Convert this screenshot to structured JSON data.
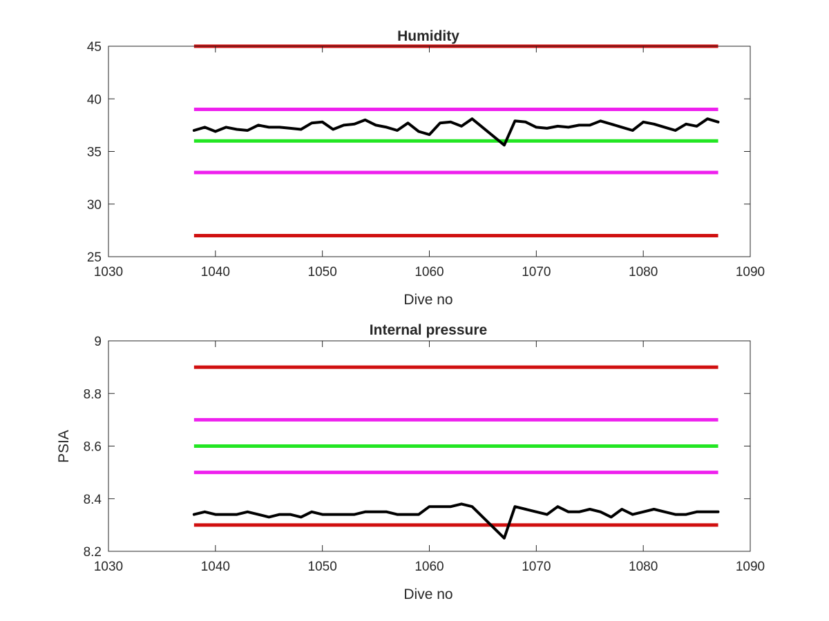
{
  "colors": {
    "data_line": "#000000",
    "red_limit": "#d01010",
    "magenta_limit": "#ee20ee",
    "green_target": "#22e622",
    "axis": "#262626",
    "background": "#ffffff"
  },
  "chart_data": [
    {
      "type": "line",
      "title": "Humidity",
      "xlabel": "Dive no",
      "ylabel": "",
      "xlim": [
        1030,
        1090
      ],
      "ylim": [
        25,
        45
      ],
      "xticks": [
        1030,
        1040,
        1050,
        1060,
        1070,
        1080,
        1090
      ],
      "yticks": [
        25,
        30,
        35,
        40,
        45
      ],
      "grid": false,
      "reference_lines": [
        {
          "color": "red",
          "y": 45,
          "x": [
            1038,
            1087
          ]
        },
        {
          "color": "magenta",
          "y": 39,
          "x": [
            1038,
            1087
          ]
        },
        {
          "color": "green",
          "y": 36,
          "x": [
            1038,
            1087
          ]
        },
        {
          "color": "magenta",
          "y": 33,
          "x": [
            1038,
            1087
          ]
        },
        {
          "color": "red",
          "y": 27,
          "x": [
            1038,
            1087
          ]
        }
      ],
      "series": [
        {
          "color": "black",
          "x": [
            1038,
            1039,
            1040,
            1041,
            1042,
            1043,
            1044,
            1045,
            1046,
            1047,
            1048,
            1049,
            1050,
            1051,
            1052,
            1053,
            1054,
            1055,
            1056,
            1057,
            1058,
            1059,
            1060,
            1061,
            1062,
            1063,
            1064,
            1067,
            1068,
            1069,
            1070,
            1071,
            1072,
            1073,
            1074,
            1075,
            1076,
            1077,
            1078,
            1079,
            1080,
            1081,
            1082,
            1083,
            1084,
            1085,
            1086,
            1087
          ],
          "y": [
            37.0,
            37.3,
            36.9,
            37.3,
            37.1,
            37.0,
            37.5,
            37.3,
            37.3,
            37.2,
            37.1,
            37.7,
            37.8,
            37.1,
            37.5,
            37.6,
            38.0,
            37.5,
            37.3,
            37.0,
            37.7,
            36.9,
            36.6,
            37.7,
            37.8,
            37.4,
            38.1,
            35.6,
            37.9,
            37.8,
            37.3,
            37.2,
            37.4,
            37.3,
            37.5,
            37.5,
            37.9,
            37.6,
            37.3,
            37.0,
            37.8,
            37.6,
            37.3,
            37.0,
            37.6,
            37.4,
            38.1,
            37.8
          ]
        }
      ]
    },
    {
      "type": "line",
      "title": "Internal pressure",
      "xlabel": "Dive no",
      "ylabel": "PSIA",
      "xlim": [
        1030,
        1090
      ],
      "ylim": [
        8.2,
        9
      ],
      "xticks": [
        1030,
        1040,
        1050,
        1060,
        1070,
        1080,
        1090
      ],
      "yticks": [
        8.2,
        8.4,
        8.6,
        8.8,
        9
      ],
      "ytick_labels": [
        "8.2",
        "8.4",
        "8.6",
        "8.8",
        "9"
      ],
      "grid": false,
      "reference_lines": [
        {
          "color": "red",
          "y": 8.9,
          "x": [
            1038,
            1087
          ]
        },
        {
          "color": "magenta",
          "y": 8.7,
          "x": [
            1038,
            1087
          ]
        },
        {
          "color": "green",
          "y": 8.6,
          "x": [
            1038,
            1087
          ]
        },
        {
          "color": "magenta",
          "y": 8.5,
          "x": [
            1038,
            1087
          ]
        },
        {
          "color": "red",
          "y": 8.3,
          "x": [
            1038,
            1087
          ]
        }
      ],
      "series": [
        {
          "color": "black",
          "x": [
            1038,
            1039,
            1040,
            1041,
            1042,
            1043,
            1044,
            1045,
            1046,
            1047,
            1048,
            1049,
            1050,
            1051,
            1052,
            1053,
            1054,
            1055,
            1056,
            1057,
            1058,
            1059,
            1060,
            1061,
            1062,
            1063,
            1064,
            1067,
            1068,
            1069,
            1070,
            1071,
            1072,
            1073,
            1074,
            1075,
            1076,
            1077,
            1078,
            1079,
            1080,
            1081,
            1082,
            1083,
            1084,
            1085,
            1086,
            1087
          ],
          "y": [
            8.34,
            8.35,
            8.34,
            8.34,
            8.34,
            8.35,
            8.34,
            8.33,
            8.34,
            8.34,
            8.33,
            8.35,
            8.34,
            8.34,
            8.34,
            8.34,
            8.35,
            8.35,
            8.35,
            8.34,
            8.34,
            8.34,
            8.37,
            8.37,
            8.37,
            8.38,
            8.37,
            8.25,
            8.37,
            8.36,
            8.35,
            8.34,
            8.37,
            8.35,
            8.35,
            8.36,
            8.35,
            8.33,
            8.36,
            8.34,
            8.35,
            8.36,
            8.35,
            8.34,
            8.34,
            8.35,
            8.35,
            8.35
          ]
        }
      ]
    }
  ]
}
